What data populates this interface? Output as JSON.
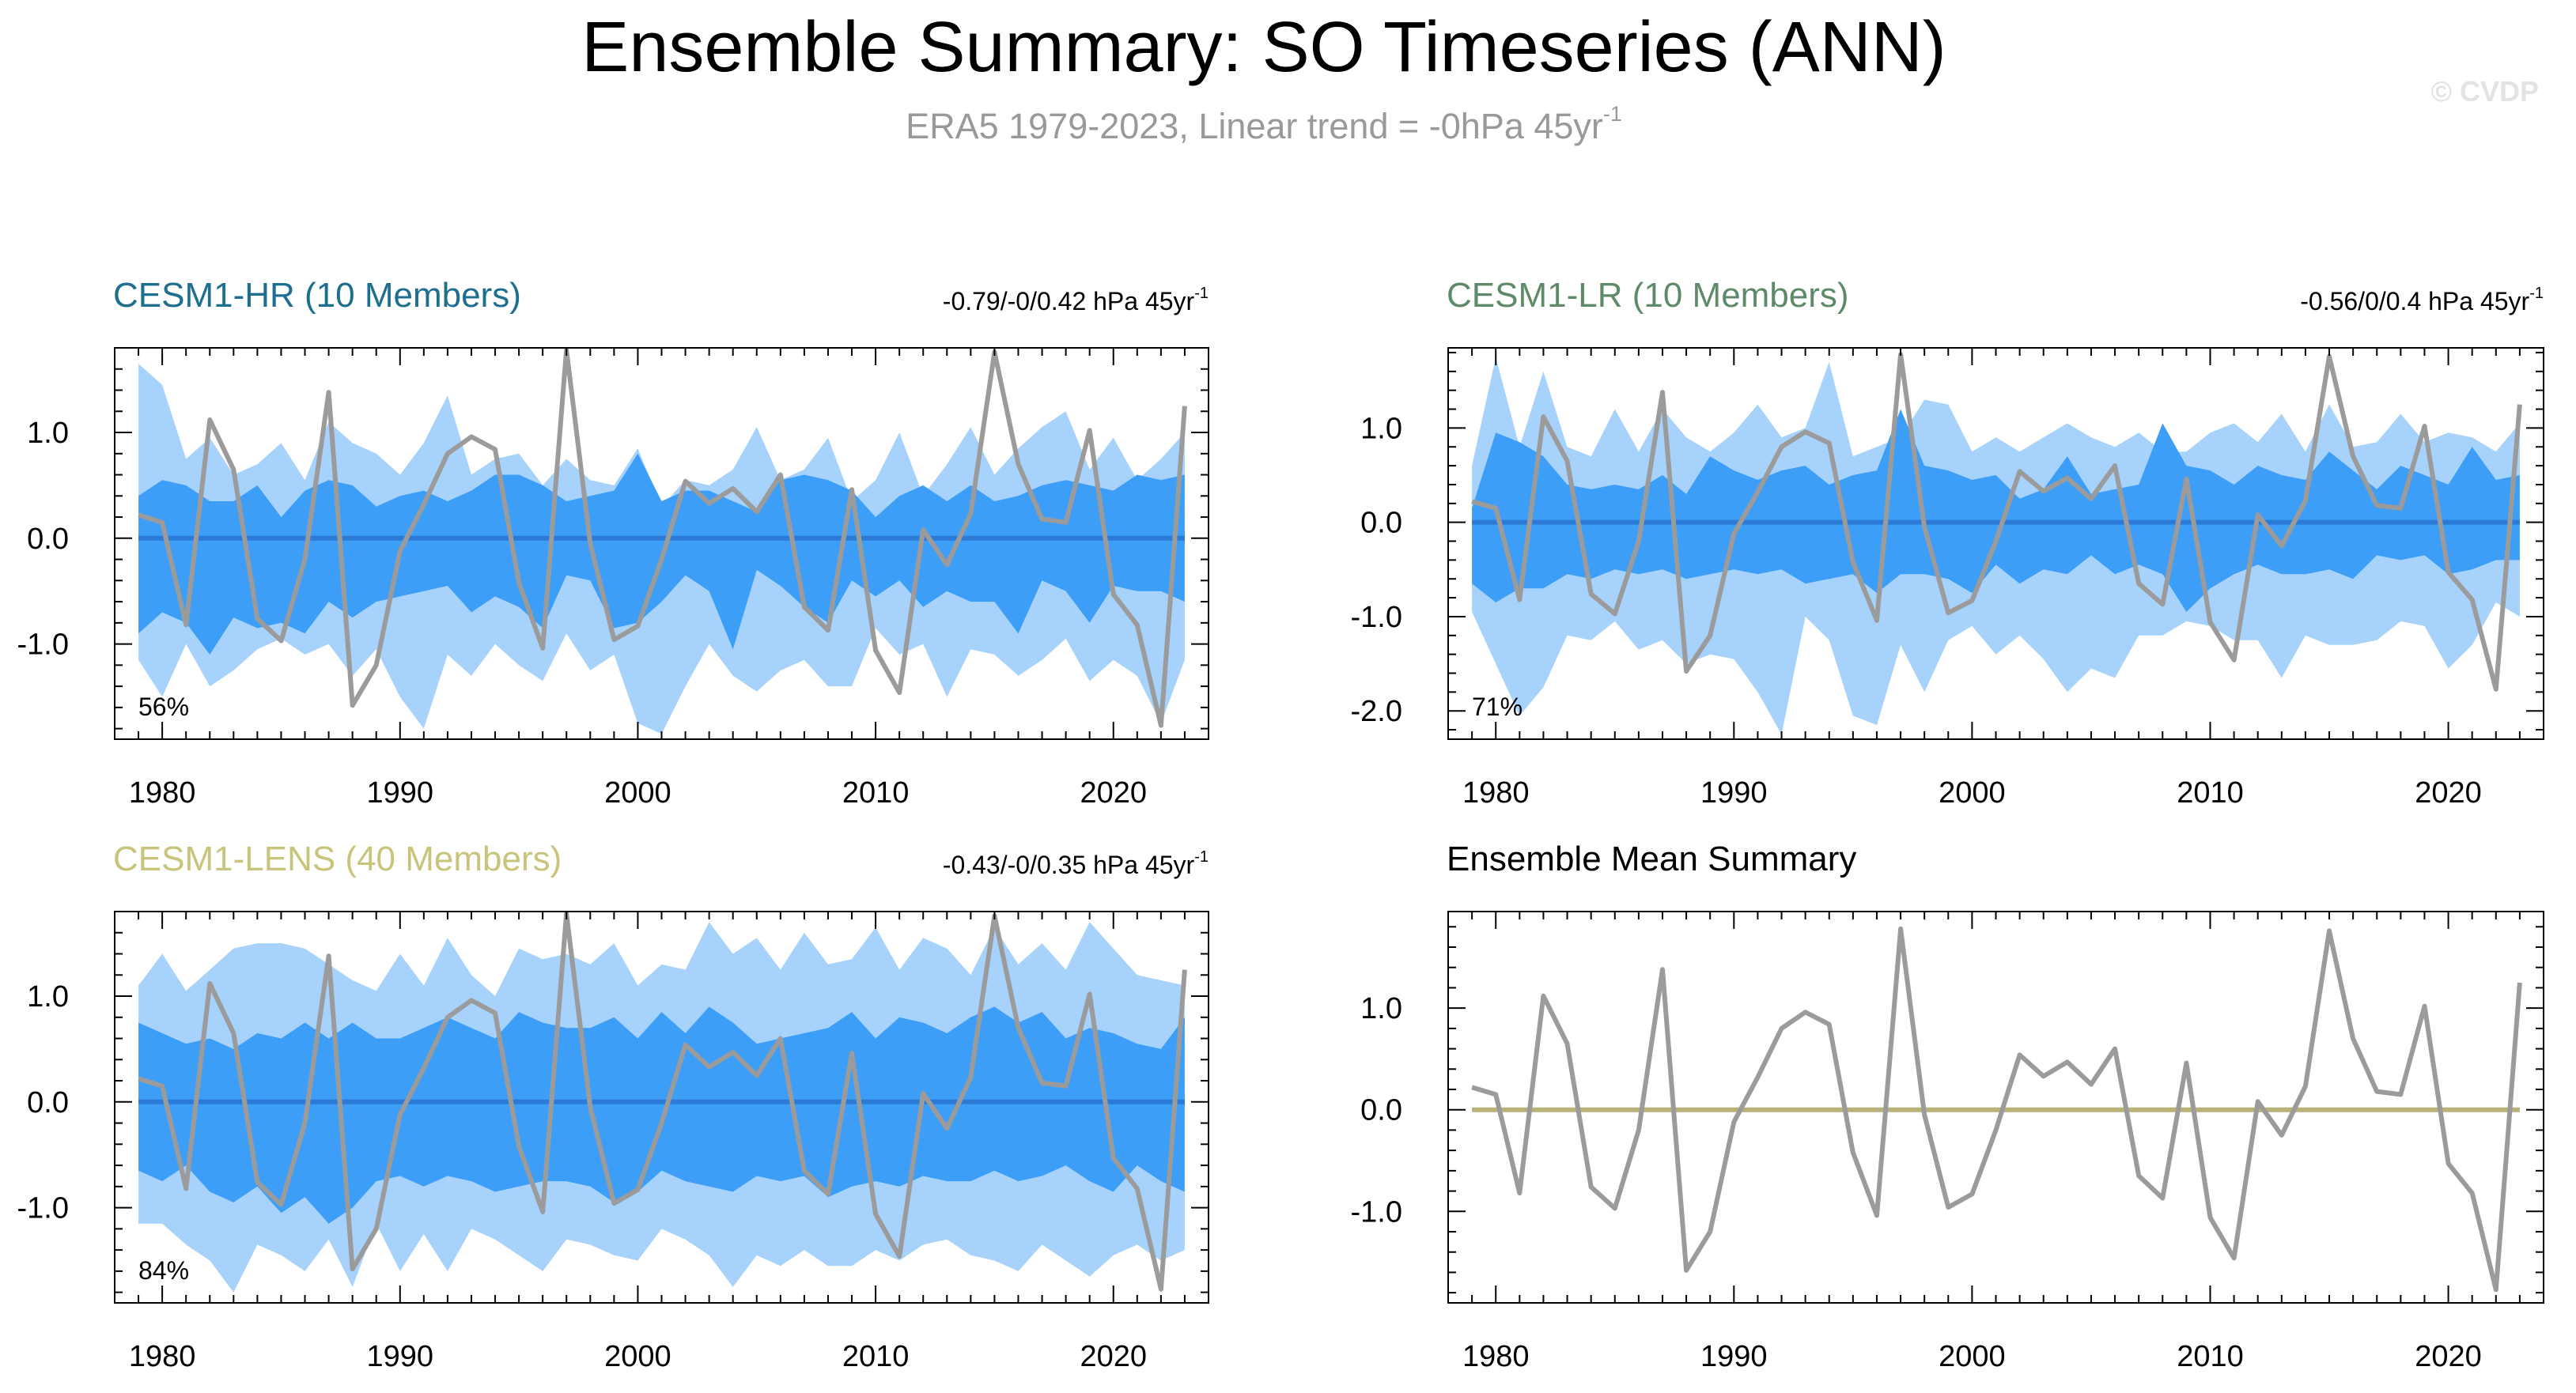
{
  "figure": {
    "title": "Ensemble Summary: SO Timeseries (ANN)",
    "subtitle": "ERA5 1979-2023, Linear trend = -0hPa 45yr",
    "subtitle_exp": "-1",
    "watermark": "© CVDP"
  },
  "colors": {
    "outer_band": "#a6d2fb",
    "inner_band": "#3d9ef7",
    "observations": "#9b9b9b",
    "zero_line": "#2b7bd6",
    "ensemble_zero_line": "#b9b277",
    "hr_title": "#1d6e8f",
    "lr_title": "#5f8a69",
    "lens_title": "#c8c47b"
  },
  "chart_data": [
    {
      "type": "area",
      "title": "CESM1-HR (10 Members)",
      "trend_label": "-0.79/-0/0.42 hPa 45yr",
      "trend_exp": "-1",
      "percent_label": "56%",
      "xlim": [
        1978,
        2024
      ],
      "ylim": [
        -1.9,
        1.8
      ],
      "xticks": [
        1980,
        1990,
        2000,
        2010,
        2020
      ],
      "yticks": [
        1.0,
        0.0,
        -1.0
      ],
      "ytick_labels": [
        "1.0",
        "0.0",
        "-1.0"
      ],
      "x": [
        1979,
        1980,
        1981,
        1982,
        1983,
        1984,
        1985,
        1986,
        1987,
        1988,
        1989,
        1990,
        1991,
        1992,
        1993,
        1994,
        1995,
        1996,
        1997,
        1998,
        1999,
        2000,
        2001,
        2002,
        2003,
        2004,
        2005,
        2006,
        2007,
        2008,
        2009,
        2010,
        2011,
        2012,
        2013,
        2014,
        2015,
        2016,
        2017,
        2018,
        2019,
        2020,
        2021,
        2022,
        2023
      ],
      "outer_upper": [
        1.65,
        1.45,
        0.75,
        0.95,
        0.6,
        0.7,
        0.9,
        0.55,
        1.1,
        0.9,
        0.8,
        0.6,
        0.9,
        1.35,
        0.6,
        0.75,
        0.8,
        0.5,
        0.75,
        0.55,
        0.5,
        0.85,
        0.3,
        0.55,
        0.5,
        0.65,
        1.05,
        0.55,
        0.65,
        0.95,
        0.35,
        0.55,
        1.0,
        0.4,
        0.7,
        1.05,
        0.6,
        0.85,
        1.05,
        1.2,
        0.65,
        0.95,
        0.55,
        0.75,
        1.0
      ],
      "inner_upper": [
        0.4,
        0.55,
        0.5,
        0.35,
        0.35,
        0.5,
        0.2,
        0.45,
        0.55,
        0.5,
        0.3,
        0.4,
        0.45,
        0.35,
        0.45,
        0.6,
        0.6,
        0.5,
        0.35,
        0.4,
        0.45,
        0.8,
        0.35,
        0.45,
        0.45,
        0.35,
        0.25,
        0.55,
        0.6,
        0.55,
        0.45,
        0.2,
        0.4,
        0.5,
        0.35,
        0.5,
        0.35,
        0.4,
        0.5,
        0.55,
        0.5,
        0.45,
        0.6,
        0.55,
        0.6
      ],
      "inner_lower": [
        -0.9,
        -0.7,
        -0.8,
        -1.1,
        -0.75,
        -0.85,
        -0.8,
        -0.9,
        -0.6,
        -0.75,
        -0.6,
        -0.55,
        -0.5,
        -0.45,
        -0.7,
        -0.55,
        -0.65,
        -0.85,
        -0.35,
        -0.4,
        -0.85,
        -0.8,
        -0.6,
        -0.35,
        -0.5,
        -1.05,
        -0.3,
        -0.45,
        -0.65,
        -0.8,
        -0.4,
        -0.55,
        -0.4,
        -0.65,
        -0.5,
        -0.6,
        -0.6,
        -0.9,
        -0.4,
        -0.5,
        -0.8,
        -0.45,
        -0.5,
        -0.5,
        -0.6
      ],
      "outer_lower": [
        -1.15,
        -1.5,
        -1.0,
        -1.4,
        -1.25,
        -1.05,
        -0.95,
        -1.1,
        -1.0,
        -1.3,
        -1.05,
        -1.5,
        -1.8,
        -1.1,
        -1.3,
        -1.0,
        -1.2,
        -1.35,
        -0.9,
        -1.25,
        -1.1,
        -1.75,
        -1.85,
        -1.4,
        -1.0,
        -1.3,
        -1.45,
        -1.25,
        -1.15,
        -1.4,
        -1.4,
        -0.85,
        -1.1,
        -1.0,
        -1.5,
        -1.05,
        -1.1,
        -1.3,
        -1.15,
        -0.95,
        -1.35,
        -1.15,
        -1.3,
        -1.75,
        -1.15
      ],
      "obs": [
        0.22,
        0.15,
        -0.82,
        1.12,
        0.65,
        -0.76,
        -0.97,
        -0.2,
        1.38,
        -1.58,
        -1.2,
        -0.12,
        0.32,
        0.8,
        0.96,
        0.84,
        -0.42,
        -1.04,
        1.78,
        -0.05,
        -0.96,
        -0.83,
        -0.2,
        0.54,
        0.33,
        0.47,
        0.25,
        0.6,
        -0.65,
        -0.87,
        0.46,
        -1.06,
        -1.46,
        0.08,
        -0.25,
        0.23,
        1.76,
        0.7,
        0.18,
        0.15,
        1.02,
        -0.53,
        -0.82,
        -1.77,
        1.25
      ],
      "zero_line_value": 0.0
    },
    {
      "type": "area",
      "title": "CESM1-LR (10 Members)",
      "trend_label": "-0.56/0/0.4 hPa 45yr",
      "trend_exp": "-1",
      "percent_label": "71%",
      "xlim": [
        1978,
        2024
      ],
      "ylim": [
        -2.3,
        1.85
      ],
      "xticks": [
        1980,
        1990,
        2000,
        2010,
        2020
      ],
      "yticks": [
        1.0,
        0.0,
        -1.0,
        -2.0
      ],
      "ytick_labels": [
        "1.0",
        "0.0",
        "-1.0",
        "-2.0"
      ],
      "x": [
        1979,
        1980,
        1981,
        1982,
        1983,
        1984,
        1985,
        1986,
        1987,
        1988,
        1989,
        1990,
        1991,
        1992,
        1993,
        1994,
        1995,
        1996,
        1997,
        1998,
        1999,
        2000,
        2001,
        2002,
        2003,
        2004,
        2005,
        2006,
        2007,
        2008,
        2009,
        2010,
        2011,
        2012,
        2013,
        2014,
        2015,
        2016,
        2017,
        2018,
        2019,
        2020,
        2021,
        2022,
        2023
      ],
      "outer_upper": [
        0.6,
        1.75,
        0.8,
        1.6,
        0.8,
        0.7,
        1.2,
        0.75,
        1.2,
        0.9,
        0.75,
        0.95,
        1.25,
        0.9,
        1.0,
        1.7,
        0.7,
        0.8,
        0.9,
        1.3,
        1.25,
        0.75,
        0.9,
        0.75,
        0.9,
        1.05,
        0.9,
        0.8,
        0.95,
        0.75,
        0.75,
        0.95,
        1.05,
        0.85,
        1.15,
        0.75,
        1.25,
        0.8,
        0.85,
        1.15,
        0.85,
        0.95,
        0.9,
        0.75,
        1.05
      ],
      "inner_upper": [
        0.15,
        0.95,
        0.85,
        0.7,
        0.4,
        0.35,
        0.4,
        0.35,
        0.5,
        0.3,
        0.7,
        0.55,
        0.45,
        0.55,
        0.6,
        0.4,
        0.5,
        0.55,
        1.2,
        0.6,
        0.55,
        0.45,
        0.5,
        0.25,
        0.35,
        0.7,
        0.3,
        0.35,
        0.4,
        1.05,
        0.6,
        0.55,
        0.4,
        0.6,
        0.5,
        0.45,
        0.75,
        0.55,
        0.35,
        0.6,
        0.5,
        0.4,
        0.8,
        0.45,
        0.5
      ],
      "inner_lower": [
        -0.65,
        -0.85,
        -0.7,
        -0.7,
        -0.55,
        -0.6,
        -0.5,
        -0.55,
        -0.5,
        -0.6,
        -0.55,
        -0.5,
        -0.55,
        -0.5,
        -0.65,
        -0.6,
        -0.55,
        -0.75,
        -0.55,
        -0.55,
        -0.6,
        -0.75,
        -0.45,
        -0.65,
        -0.5,
        -0.55,
        -0.35,
        -0.55,
        -0.45,
        -0.55,
        -0.95,
        -0.7,
        -0.55,
        -0.45,
        -0.55,
        -0.55,
        -0.5,
        -0.6,
        -0.35,
        -0.4,
        -0.35,
        -0.55,
        -0.5,
        -0.4,
        -0.4
      ],
      "outer_lower": [
        -0.95,
        -1.5,
        -2.05,
        -1.75,
        -1.2,
        -1.25,
        -1.05,
        -1.35,
        -1.25,
        -1.5,
        -1.4,
        -1.45,
        -1.8,
        -2.25,
        -1.0,
        -1.25,
        -2.05,
        -2.15,
        -1.3,
        -1.8,
        -1.25,
        -1.1,
        -1.4,
        -1.2,
        -1.45,
        -1.8,
        -1.55,
        -1.65,
        -1.2,
        -1.2,
        -1.05,
        -1.1,
        -1.25,
        -1.25,
        -1.65,
        -1.2,
        -1.3,
        -1.3,
        -1.25,
        -1.05,
        -1.1,
        -1.55,
        -1.3,
        -0.85,
        -1.0
      ],
      "obs": [
        0.22,
        0.15,
        -0.82,
        1.12,
        0.65,
        -0.76,
        -0.97,
        -0.2,
        1.38,
        -1.58,
        -1.2,
        -0.12,
        0.32,
        0.8,
        0.96,
        0.84,
        -0.42,
        -1.04,
        1.78,
        -0.05,
        -0.96,
        -0.83,
        -0.2,
        0.54,
        0.33,
        0.47,
        0.25,
        0.6,
        -0.65,
        -0.87,
        0.46,
        -1.06,
        -1.46,
        0.08,
        -0.25,
        0.23,
        1.76,
        0.7,
        0.18,
        0.15,
        1.02,
        -0.53,
        -0.82,
        -1.77,
        1.25
      ],
      "zero_line_value": 0.0
    },
    {
      "type": "area",
      "title": "CESM1-LENS (40 Members)",
      "trend_label": "-0.43/-0/0.35 hPa 45yr",
      "trend_exp": "-1",
      "percent_label": "84%",
      "xlim": [
        1978,
        2024
      ],
      "ylim": [
        -1.9,
        1.8
      ],
      "xticks": [
        1980,
        1990,
        2000,
        2010,
        2020
      ],
      "yticks": [
        1.0,
        0.0,
        -1.0
      ],
      "ytick_labels": [
        "1.0",
        "0.0",
        "-1.0"
      ],
      "x": [
        1979,
        1980,
        1981,
        1982,
        1983,
        1984,
        1985,
        1986,
        1987,
        1988,
        1989,
        1990,
        1991,
        1992,
        1993,
        1994,
        1995,
        1996,
        1997,
        1998,
        1999,
        2000,
        2001,
        2002,
        2003,
        2004,
        2005,
        2006,
        2007,
        2008,
        2009,
        2010,
        2011,
        2012,
        2013,
        2014,
        2015,
        2016,
        2017,
        2018,
        2019,
        2020,
        2021,
        2022,
        2023
      ],
      "outer_upper": [
        1.1,
        1.4,
        1.05,
        1.25,
        1.45,
        1.5,
        1.5,
        1.45,
        1.3,
        1.15,
        1.05,
        1.4,
        1.1,
        1.55,
        1.2,
        1.0,
        1.45,
        1.35,
        1.4,
        1.3,
        1.5,
        1.1,
        1.3,
        1.25,
        1.7,
        1.4,
        1.55,
        1.25,
        1.6,
        1.3,
        1.35,
        1.65,
        1.25,
        1.55,
        1.45,
        1.2,
        1.65,
        1.3,
        1.5,
        1.25,
        1.7,
        1.45,
        1.2,
        1.15,
        1.1
      ],
      "inner_upper": [
        0.75,
        0.65,
        0.55,
        0.6,
        0.5,
        0.65,
        0.6,
        0.75,
        0.6,
        0.75,
        0.6,
        0.6,
        0.7,
        0.8,
        0.7,
        0.6,
        0.85,
        0.75,
        0.7,
        0.7,
        0.8,
        0.6,
        0.85,
        0.65,
        0.9,
        0.75,
        0.55,
        0.6,
        0.65,
        0.7,
        0.85,
        0.6,
        0.8,
        0.75,
        0.65,
        0.8,
        0.9,
        0.75,
        0.85,
        0.6,
        0.7,
        0.65,
        0.55,
        0.5,
        0.8
      ],
      "inner_lower": [
        -0.65,
        -0.75,
        -0.6,
        -0.85,
        -0.95,
        -0.8,
        -1.05,
        -0.9,
        -1.15,
        -1.0,
        -0.75,
        -0.7,
        -0.8,
        -0.7,
        -0.75,
        -0.85,
        -0.8,
        -0.75,
        -0.75,
        -0.8,
        -0.95,
        -0.85,
        -0.65,
        -0.75,
        -0.8,
        -0.85,
        -0.7,
        -0.75,
        -0.7,
        -0.9,
        -0.8,
        -0.75,
        -0.8,
        -0.7,
        -0.75,
        -0.75,
        -0.65,
        -0.75,
        -0.7,
        -0.6,
        -0.75,
        -0.85,
        -0.6,
        -0.75,
        -0.85
      ],
      "outer_lower": [
        -1.15,
        -1.15,
        -1.35,
        -1.5,
        -1.8,
        -1.35,
        -1.45,
        -1.6,
        -1.3,
        -1.75,
        -1.15,
        -1.6,
        -1.25,
        -1.6,
        -1.2,
        -1.3,
        -1.45,
        -1.6,
        -1.3,
        -1.35,
        -1.45,
        -1.5,
        -1.2,
        -1.3,
        -1.45,
        -1.75,
        -1.45,
        -1.55,
        -1.4,
        -1.55,
        -1.55,
        -1.4,
        -1.5,
        -1.35,
        -1.3,
        -1.45,
        -1.5,
        -1.6,
        -1.35,
        -1.5,
        -1.65,
        -1.45,
        -1.35,
        -1.5,
        -1.4
      ],
      "obs": [
        0.22,
        0.15,
        -0.82,
        1.12,
        0.65,
        -0.76,
        -0.97,
        -0.2,
        1.38,
        -1.58,
        -1.2,
        -0.12,
        0.32,
        0.8,
        0.96,
        0.84,
        -0.42,
        -1.04,
        1.78,
        -0.05,
        -0.96,
        -0.83,
        -0.2,
        0.54,
        0.33,
        0.47,
        0.25,
        0.6,
        -0.65,
        -0.87,
        0.46,
        -1.06,
        -1.46,
        0.08,
        -0.25,
        0.23,
        1.76,
        0.7,
        0.18,
        0.15,
        1.02,
        -0.53,
        -0.82,
        -1.77,
        1.25
      ],
      "zero_line_value": 0.0
    },
    {
      "type": "line",
      "title": "Ensemble Mean Summary",
      "xlim": [
        1978,
        2024
      ],
      "ylim": [
        -1.9,
        1.95
      ],
      "xticks": [
        1980,
        1990,
        2000,
        2010,
        2020
      ],
      "yticks": [
        1.0,
        0.0,
        -1.0
      ],
      "ytick_labels": [
        "1.0",
        "0.0",
        "-1.0"
      ],
      "x": [
        1979,
        1980,
        1981,
        1982,
        1983,
        1984,
        1985,
        1986,
        1987,
        1988,
        1989,
        1990,
        1991,
        1992,
        1993,
        1994,
        1995,
        1996,
        1997,
        1998,
        1999,
        2000,
        2001,
        2002,
        2003,
        2004,
        2005,
        2006,
        2007,
        2008,
        2009,
        2010,
        2011,
        2012,
        2013,
        2014,
        2015,
        2016,
        2017,
        2018,
        2019,
        2020,
        2021,
        2022,
        2023
      ],
      "obs": [
        0.22,
        0.15,
        -0.82,
        1.12,
        0.65,
        -0.76,
        -0.97,
        -0.2,
        1.38,
        -1.58,
        -1.2,
        -0.12,
        0.32,
        0.8,
        0.96,
        0.84,
        -0.42,
        -1.04,
        1.78,
        -0.05,
        -0.96,
        -0.83,
        -0.2,
        0.54,
        0.33,
        0.47,
        0.25,
        0.6,
        -0.65,
        -0.87,
        0.46,
        -1.06,
        -1.46,
        0.08,
        -0.25,
        0.23,
        1.76,
        0.7,
        0.18,
        0.15,
        1.02,
        -0.53,
        -0.82,
        -1.77,
        1.25
      ],
      "zero_line_value": 0.0
    }
  ]
}
